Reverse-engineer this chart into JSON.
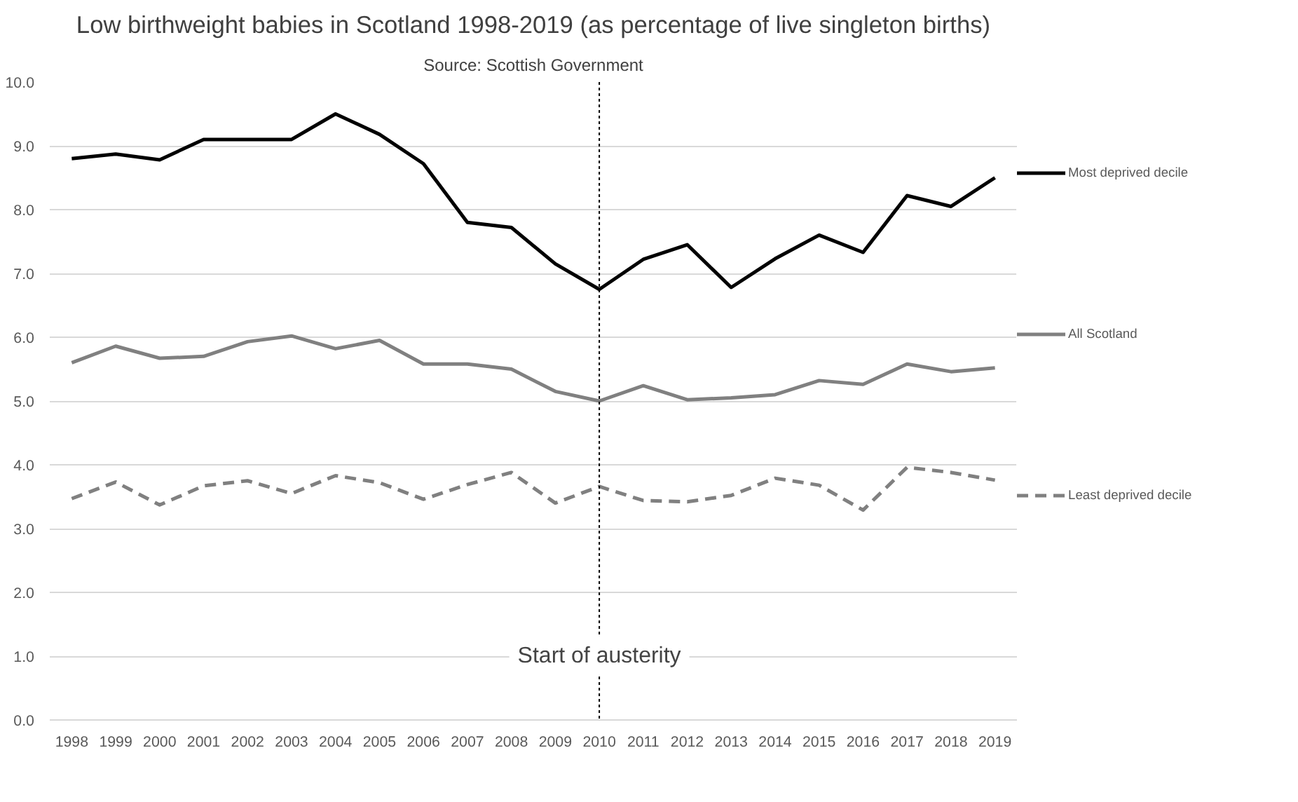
{
  "chart_data": {
    "type": "line",
    "title": "Low birthweight babies in Scotland 1998-2019 (as percentage of live singleton births)",
    "subtitle": "Source: Scottish Government",
    "x": [
      1998,
      1999,
      2000,
      2001,
      2002,
      2003,
      2004,
      2005,
      2006,
      2007,
      2008,
      2009,
      2010,
      2011,
      2012,
      2013,
      2014,
      2015,
      2016,
      2017,
      2018,
      2019
    ],
    "xlim": [
      1997.5,
      2019.5
    ],
    "xticks": [
      1998,
      1999,
      2000,
      2001,
      2002,
      2003,
      2004,
      2005,
      2006,
      2007,
      2008,
      2009,
      2010,
      2011,
      2012,
      2013,
      2014,
      2015,
      2016,
      2017,
      2018,
      2019
    ],
    "ylim": [
      0,
      10
    ],
    "yticks": [
      {
        "value": 0,
        "label": "0.0"
      },
      {
        "value": 1,
        "label": "1.0"
      },
      {
        "value": 2,
        "label": "2.0"
      },
      {
        "value": 3,
        "label": "3.0"
      },
      {
        "value": 4,
        "label": "4.0"
      },
      {
        "value": 5,
        "label": "5.0"
      },
      {
        "value": 6,
        "label": "6.0"
      },
      {
        "value": 7,
        "label": "7.0"
      },
      {
        "value": 8,
        "label": "8.0"
      },
      {
        "value": 9,
        "label": "9.0"
      },
      {
        "value": 10,
        "label": "10.0"
      }
    ],
    "series": [
      {
        "name": "Most deprived decile",
        "color": "#000000",
        "line_style": "solid",
        "values": [
          8.8,
          8.87,
          8.78,
          9.1,
          9.1,
          9.1,
          9.5,
          9.18,
          8.72,
          7.8,
          7.72,
          7.15,
          6.75,
          7.22,
          7.45,
          6.78,
          7.23,
          7.6,
          7.33,
          8.22,
          8.05,
          8.5
        ]
      },
      {
        "name": "All Scotland",
        "color": "#808080",
        "line_style": "solid",
        "values": [
          5.6,
          5.86,
          5.67,
          5.7,
          5.93,
          6.02,
          5.82,
          5.95,
          5.58,
          5.58,
          5.5,
          5.15,
          5.0,
          5.24,
          5.02,
          5.05,
          5.1,
          5.32,
          5.26,
          5.58,
          5.46,
          5.52
        ]
      },
      {
        "name": "Least deprived decile",
        "color": "#808080",
        "line_style": "dashed",
        "values": [
          3.47,
          3.73,
          3.37,
          3.67,
          3.75,
          3.55,
          3.83,
          3.72,
          3.46,
          3.69,
          3.88,
          3.4,
          3.66,
          3.44,
          3.42,
          3.52,
          3.79,
          3.68,
          3.29,
          3.96,
          3.88,
          3.76
        ]
      }
    ],
    "ref_lines": [
      {
        "axis": "x",
        "value": 2010,
        "label": "Start of austerity",
        "color": "#000000",
        "line_style": "dotted"
      }
    ],
    "grid": "y",
    "legend": "right",
    "marker": "none"
  }
}
